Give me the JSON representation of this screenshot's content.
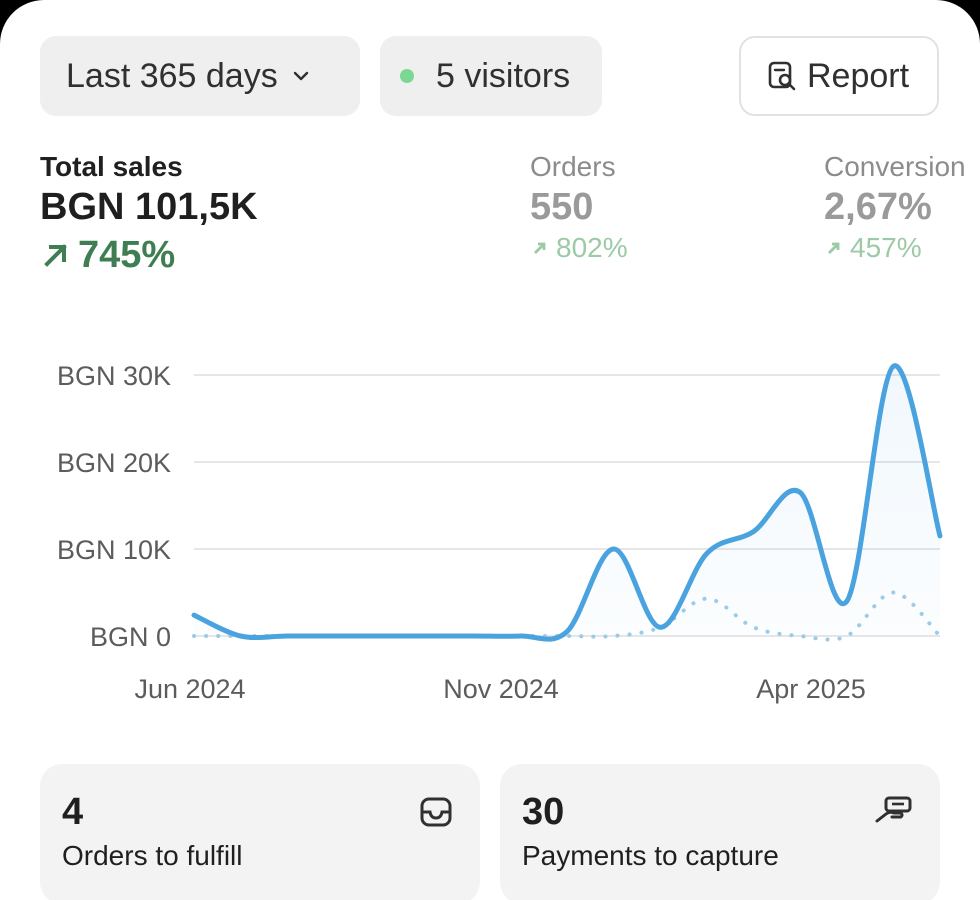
{
  "filters": {
    "date_range": "Last 365 days",
    "visitors": "5 visitors",
    "report_label": "Report"
  },
  "metrics": {
    "total_sales": {
      "label": "Total sales",
      "value": "BGN 101,5K",
      "change": "745%"
    },
    "orders": {
      "label": "Orders",
      "value": "550",
      "change": "802%"
    },
    "conversion": {
      "label": "Conversion",
      "value": "2,67%",
      "change": "457%"
    }
  },
  "colors": {
    "accent": "#4aa3df",
    "positive": "#3f7d52",
    "positive_muted": "#9ccaa6",
    "visitor_dot": "#7ad892"
  },
  "chart_data": {
    "type": "line",
    "ylabels": [
      "BGN 30K",
      "BGN 20K",
      "BGN 10K",
      "BGN 0"
    ],
    "yticks": [
      30000,
      20000,
      10000,
      0
    ],
    "ylim": [
      0,
      30000
    ],
    "xlabels": [
      "Jun 2024",
      "Nov 2024",
      "Apr 2025"
    ],
    "grid": true,
    "series": [
      {
        "style": "solid",
        "values": [
          2400,
          0,
          0,
          0,
          0,
          0,
          0,
          0,
          500,
          10000,
          1000,
          9500,
          12000,
          16500,
          4000,
          31000,
          11500
        ]
      },
      {
        "style": "dotted",
        "values": [
          0,
          0,
          0,
          0,
          0,
          0,
          0,
          0,
          0,
          0,
          1000,
          4300,
          1000,
          0,
          0,
          5000,
          0
        ]
      }
    ]
  },
  "cards": [
    {
      "value": "4",
      "label": "Orders to fulfill",
      "icon": "inbox-icon"
    },
    {
      "value": "30",
      "label": "Payments to capture",
      "icon": "hand-cash-icon"
    }
  ]
}
